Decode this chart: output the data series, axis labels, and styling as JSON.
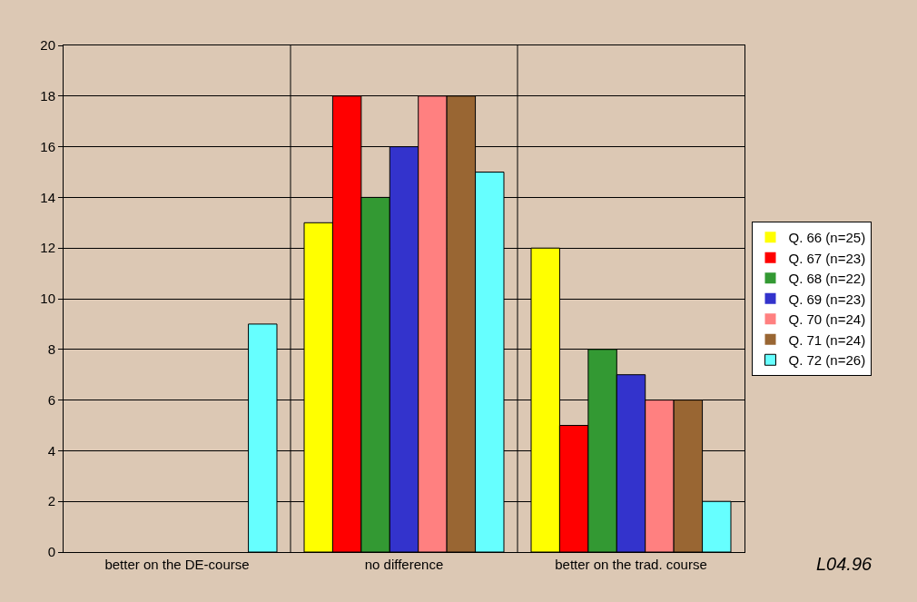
{
  "chart_data": {
    "type": "bar",
    "categories": [
      "better on the DE-course",
      "no difference",
      "better on the trad. course"
    ],
    "series": [
      {
        "name": "Q. 66 (n=25)",
        "color": "#ffff00",
        "values": [
          0,
          13,
          12
        ]
      },
      {
        "name": "Q. 67 (n=23)",
        "color": "#ff0000",
        "values": [
          0,
          18,
          5
        ]
      },
      {
        "name": "Q. 68 (n=22)",
        "color": "#339933",
        "values": [
          0,
          14,
          8
        ]
      },
      {
        "name": "Q. 69 (n=23)",
        "color": "#3333cc",
        "values": [
          0,
          16,
          7
        ]
      },
      {
        "name": "Q. 70 (n=24)",
        "color": "#ff8080",
        "values": [
          0,
          18,
          6
        ]
      },
      {
        "name": "Q. 71 (n=24)",
        "color": "#996633",
        "values": [
          0,
          18,
          6
        ]
      },
      {
        "name": "Q. 72 (n=26)",
        "color": "#66ffff",
        "values": [
          9,
          15,
          2
        ]
      }
    ],
    "ylim": [
      0,
      20
    ],
    "yticks": [
      0,
      2,
      4,
      6,
      8,
      10,
      12,
      14,
      16,
      18,
      20
    ],
    "grid": true,
    "legend": "right",
    "annotations": [
      "L04.96"
    ]
  }
}
